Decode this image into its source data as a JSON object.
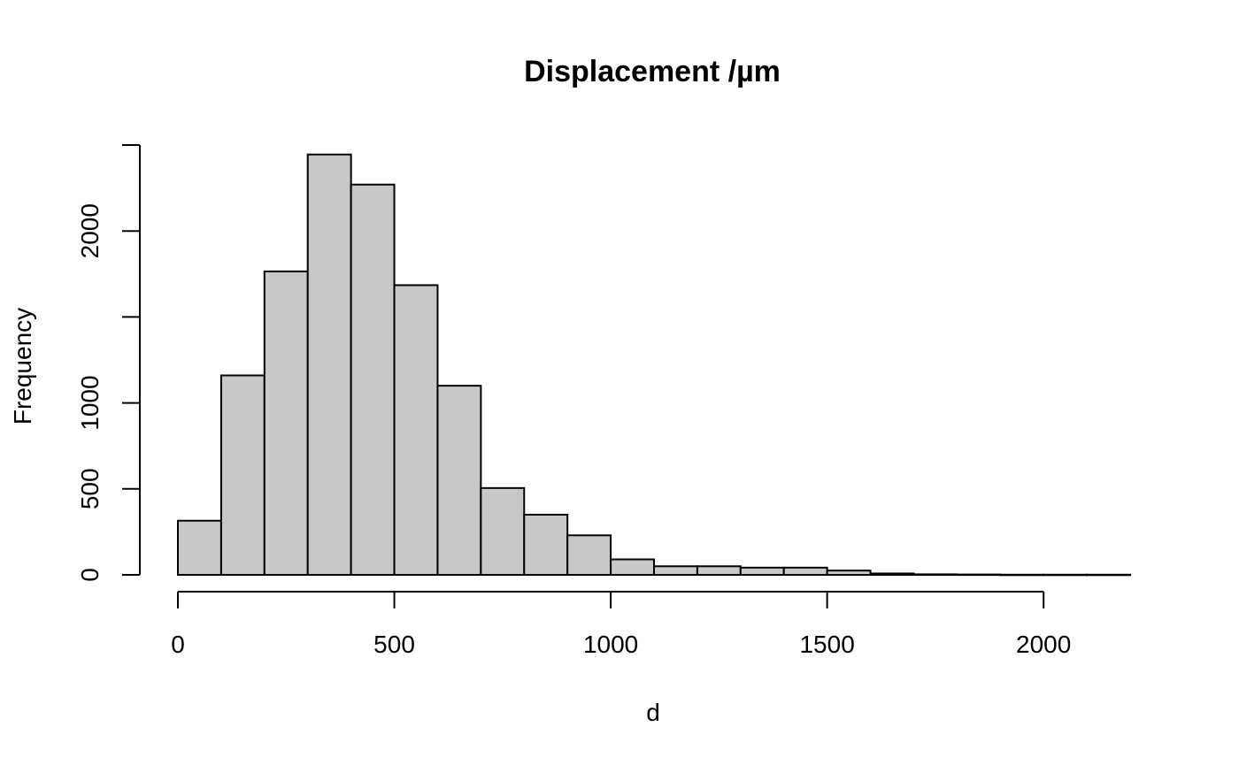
{
  "chart_data": {
    "type": "bar",
    "title": "Displacement /µm",
    "xlabel": "d",
    "ylabel": "Frequency",
    "bin_edges": [
      0,
      100,
      200,
      300,
      400,
      500,
      600,
      700,
      800,
      900,
      1000,
      1100,
      1200,
      1300,
      1400,
      1500,
      1600,
      1700,
      1800,
      1900,
      2000,
      2100,
      2200
    ],
    "values": [
      315,
      1160,
      1765,
      2445,
      2270,
      1685,
      1100,
      505,
      350,
      230,
      90,
      50,
      50,
      42,
      42,
      25,
      8,
      3,
      2,
      1,
      1,
      1
    ],
    "xlim": [
      0,
      2200
    ],
    "ylim": [
      0,
      2500
    ],
    "x_ticks": [
      0,
      500,
      1000,
      1500,
      2000
    ],
    "x_tick_labels": [
      "0",
      "500",
      "1000",
      "1500",
      "2000"
    ],
    "y_ticks": [
      0,
      500,
      1000,
      1500,
      2000,
      2500
    ],
    "y_tick_labels": [
      "0",
      "500",
      "1000",
      "",
      "2000",
      ""
    ],
    "bar_fill": "#c8c8c8",
    "bar_stroke": "#000000",
    "grid": false
  }
}
